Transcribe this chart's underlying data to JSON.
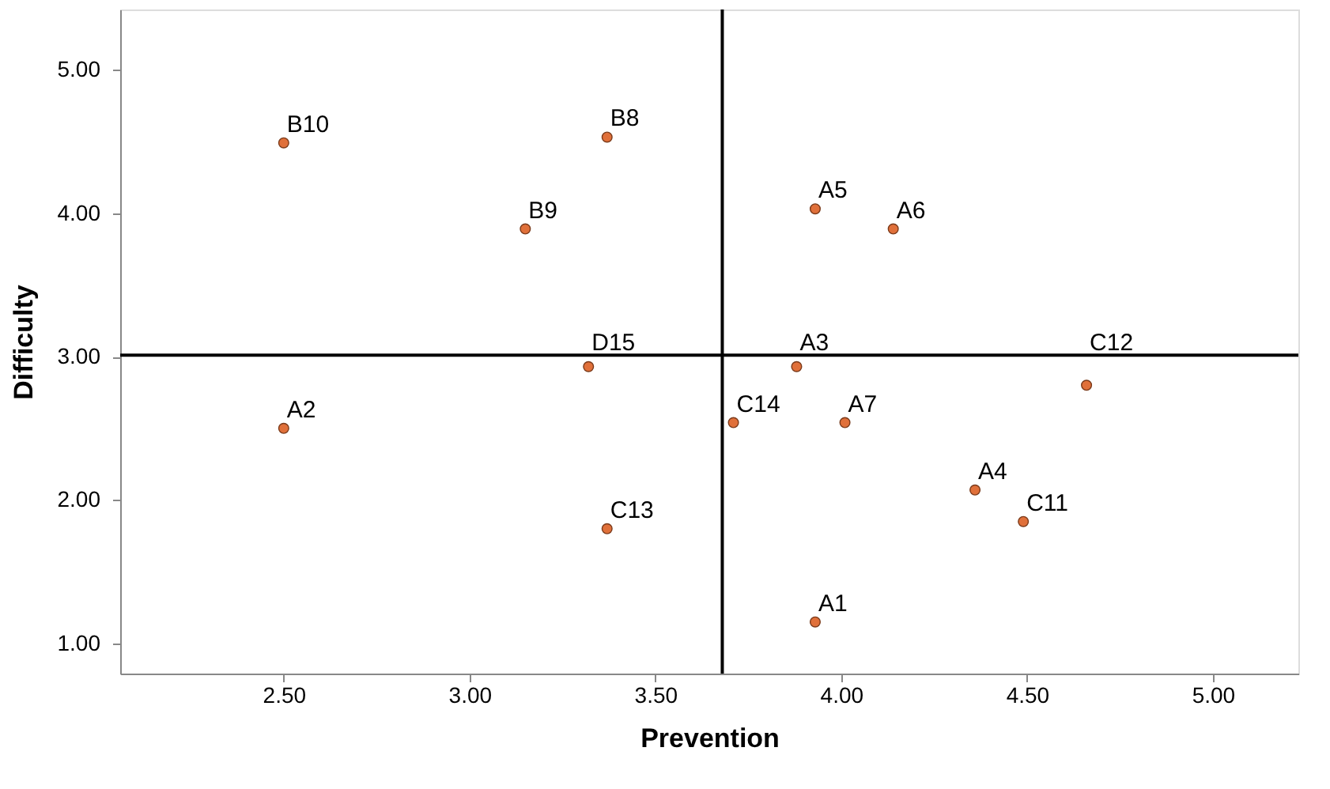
{
  "chart_data": {
    "type": "scatter",
    "xlabel": "Prevention",
    "ylabel": "Difficulty",
    "x": [
      2.5,
      3.37,
      3.15,
      3.32,
      2.5,
      3.37,
      3.93,
      4.14,
      3.88,
      3.71,
      4.01,
      4.66,
      4.36,
      4.49,
      3.93
    ],
    "series": [
      {
        "color": "#e0703a",
        "values": [
          4.49,
          4.53,
          3.89,
          2.93,
          2.5,
          1.8,
          4.03,
          3.89,
          2.93,
          2.54,
          2.54,
          2.8,
          2.07,
          1.85,
          1.15
        ]
      }
    ],
    "annotations": [
      {
        "text": "B10",
        "x": 2.5,
        "y": 4.49
      },
      {
        "text": "B8",
        "x": 3.37,
        "y": 4.53
      },
      {
        "text": "B9",
        "x": 3.15,
        "y": 3.89
      },
      {
        "text": "D15",
        "x": 3.32,
        "y": 2.93
      },
      {
        "text": "A2",
        "x": 2.5,
        "y": 2.5
      },
      {
        "text": "C13",
        "x": 3.37,
        "y": 1.8
      },
      {
        "text": "A5",
        "x": 3.93,
        "y": 4.03
      },
      {
        "text": "A6",
        "x": 4.14,
        "y": 3.89
      },
      {
        "text": "A3",
        "x": 3.88,
        "y": 2.93
      },
      {
        "text": "C14",
        "x": 3.71,
        "y": 2.54
      },
      {
        "text": "A7",
        "x": 4.01,
        "y": 2.54
      },
      {
        "text": "C12",
        "x": 4.66,
        "y": 2.8
      },
      {
        "text": "A4",
        "x": 4.36,
        "y": 2.07
      },
      {
        "text": "C11",
        "x": 4.49,
        "y": 1.85
      },
      {
        "text": "A1",
        "x": 3.93,
        "y": 1.15
      }
    ],
    "xlim": [
      2.06,
      5.23
    ],
    "ylim": [
      0.79,
      5.42
    ],
    "xticks": [
      {
        "value": 2.5,
        "label": "2.50"
      },
      {
        "value": 3.0,
        "label": "3.00"
      },
      {
        "value": 3.5,
        "label": "3.50"
      },
      {
        "value": 4.0,
        "label": "4.00"
      },
      {
        "value": 4.5,
        "label": "4.50"
      },
      {
        "value": 5.0,
        "label": "5.00"
      }
    ],
    "yticks": [
      {
        "value": 1.0,
        "label": "1.00"
      },
      {
        "value": 2.0,
        "label": "2.00"
      },
      {
        "value": 3.0,
        "label": "3.00"
      },
      {
        "value": 4.0,
        "label": "4.00"
      },
      {
        "value": 5.0,
        "label": "5.00"
      }
    ],
    "ref_lines": [
      {
        "axis": "x",
        "value": 3.68,
        "color": "#000000"
      },
      {
        "axis": "y",
        "value": 3.01,
        "color": "#000000"
      }
    ],
    "marker": "circle",
    "grid": false,
    "legend": false
  }
}
